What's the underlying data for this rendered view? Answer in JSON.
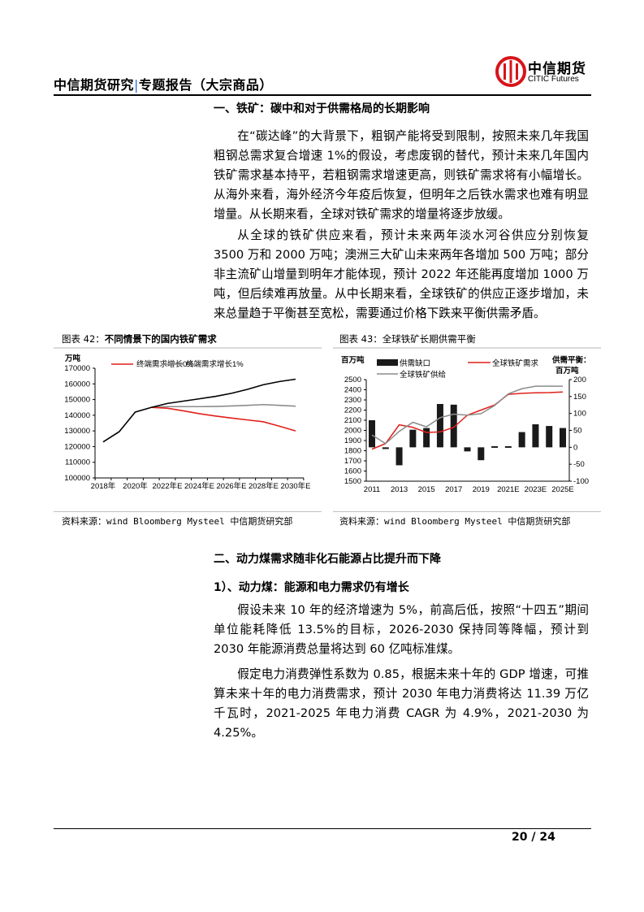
{
  "header": {
    "title_left": "中信期货研究",
    "title_sep": "|",
    "title_right": "专题报告（大宗商品）",
    "logo_cn": "中信期货",
    "logo_en": "CITIC Futures",
    "brand_color": "#d7141a"
  },
  "section1": {
    "heading": "一、铁矿：碳中和对于供需格局的长期影响",
    "paragraphs": [
      "在“碳达峰”的大背景下，粗钢产能将受到限制，按照未来几年我国粗钢总需求复合增速 1%的假设，考虑废钢的替代，预计未来几年国内铁矿需求基本持平，若粗钢需求增速更高，则铁矿需求将有小幅增长。从海外来看，海外经济今年疫后恢复，但明年之后铁水需求也难有明显增量。从长期来看，全球对铁矿需求的增量将逐步放缓。",
      "从全球的铁矿供应来看，预计未来两年淡水河谷供应分别恢复 3500 万和 2000 万吨；澳洲三大矿山未来两年各增加 500 万吨；部分非主流矿山增量到明年才能体现，预计 2022 年还能再度增加 1000 万吨，但后续难再放量。从中长期来看，全球铁矿的供应正逐步增加，未来总量趋于平衡甚至宽松，需要通过价格下跌来平衡供需矛盾。"
    ]
  },
  "figure42": {
    "label": "图表 42：",
    "title": "不同情景下的国内铁矿需求",
    "source": "资料来源：wind Bloomberg Mysteel 中信期货研究部"
  },
  "figure43": {
    "label": "图表 43：",
    "title": "全球铁矿长期供需平衡",
    "source": "资料来源：wind Bloomberg Mysteel 中信期货研究部"
  },
  "chart_data": [
    {
      "type": "line",
      "ylabel": "万吨",
      "ylim": [
        100000,
        170000
      ],
      "yticks": [
        "100000",
        "110000",
        "120000",
        "130000",
        "140000",
        "150000",
        "160000",
        "170000"
      ],
      "x": [
        2018,
        2019,
        2020,
        2021,
        2022,
        2023,
        2024,
        2025,
        2026,
        2027,
        2028,
        2029,
        2030
      ],
      "xtick_labels": [
        "2018年",
        "2020年",
        "2022年E",
        "2024年E",
        "2026年E",
        "2028年E",
        "2030年E"
      ],
      "legend": "top",
      "series": [
        {
          "name": "",
          "color": "#000000",
          "values": [
            123000,
            129500,
            142000,
            145000,
            147500,
            149000,
            150500,
            152000,
            154000,
            156500,
            159500,
            161500,
            163000
          ]
        },
        {
          "name": "终端需求增长0%",
          "color": "#e0201b",
          "values": [
            null,
            null,
            null,
            145000,
            144500,
            142800,
            141000,
            139500,
            138200,
            137000,
            135800,
            133000,
            130000
          ]
        },
        {
          "name": "终端需求增长1%",
          "color": "#8c8c8c",
          "values": [
            null,
            null,
            null,
            145000,
            145500,
            145500,
            145500,
            145600,
            145900,
            146300,
            146800,
            146300,
            145800
          ]
        }
      ]
    },
    {
      "type": "bar+line",
      "ylabel": "百万吨",
      "ylabel_right": [
        "供需平衡：",
        "百万吨"
      ],
      "ylim": [
        1500,
        2500
      ],
      "ylim_right": [
        -100,
        200
      ],
      "yticks": [
        "1500",
        "1600",
        "1700",
        "1800",
        "1900",
        "2000",
        "2100",
        "2200",
        "2300",
        "2400",
        "2500"
      ],
      "yticks_right": [
        "-100",
        "-50",
        "0",
        "50",
        "100",
        "150",
        "200"
      ],
      "x": [
        "2011",
        "2012",
        "2013",
        "2014",
        "2015",
        "2016",
        "2017",
        "2018",
        "2019",
        "2020",
        "2021E",
        "2022E",
        "2023E",
        "2024E",
        "2025E"
      ],
      "xtick_labels": [
        "2011",
        "2013",
        "2015",
        "2017",
        "2019",
        "2021E",
        "2023E",
        "2025E"
      ],
      "legend": "top",
      "series": [
        {
          "name": "供需缺口",
          "type": "bar",
          "axis": "right",
          "color": "#1a1a1a",
          "values": [
            80,
            -5,
            -53,
            52,
            57,
            128,
            126,
            -12,
            -38,
            1,
            1,
            45,
            68,
            63,
            57
          ]
        },
        {
          "name": "全球铁矿需求",
          "type": "line",
          "axis": "left",
          "color": "#e0201b",
          "values": [
            1815,
            1870,
            2055,
            2030,
            1980,
            1985,
            2030,
            2150,
            2200,
            2250,
            2355,
            2365,
            2370,
            2372,
            2378
          ]
        },
        {
          "name": "全球铁矿供给",
          "type": "line",
          "axis": "left",
          "color": "#8c8c8c",
          "values": [
            1955,
            1870,
            1990,
            2080,
            2035,
            2125,
            2160,
            2150,
            2165,
            2245,
            2360,
            2410,
            2435,
            2435,
            2435
          ]
        }
      ]
    }
  ],
  "section2": {
    "heading": "二、动力煤需求随非化石能源占比提升而下降",
    "subheading": "1）、动力煤：能源和电力需求仍有增长",
    "paragraphs": [
      "假设未来 10 年的经济增速为 5%，前高后低，按照“十四五”期间单位能耗降低 13.5%的目标，2026-2030 保持同等降幅，预计到 2030 年能源消费总量将达到 60 亿吨标准煤。",
      "假定电力消费弹性系数为 0.85，根据未来十年的 GDP 增速，可推算未来十年的电力消费需求，预计 2030 年电力消费将达 11.39 万亿千瓦时，2021-2025 年电力消费 CAGR 为 4.9%，2021-2030 为 4.25%。"
    ]
  },
  "footer": {
    "page": "20 / 24"
  }
}
